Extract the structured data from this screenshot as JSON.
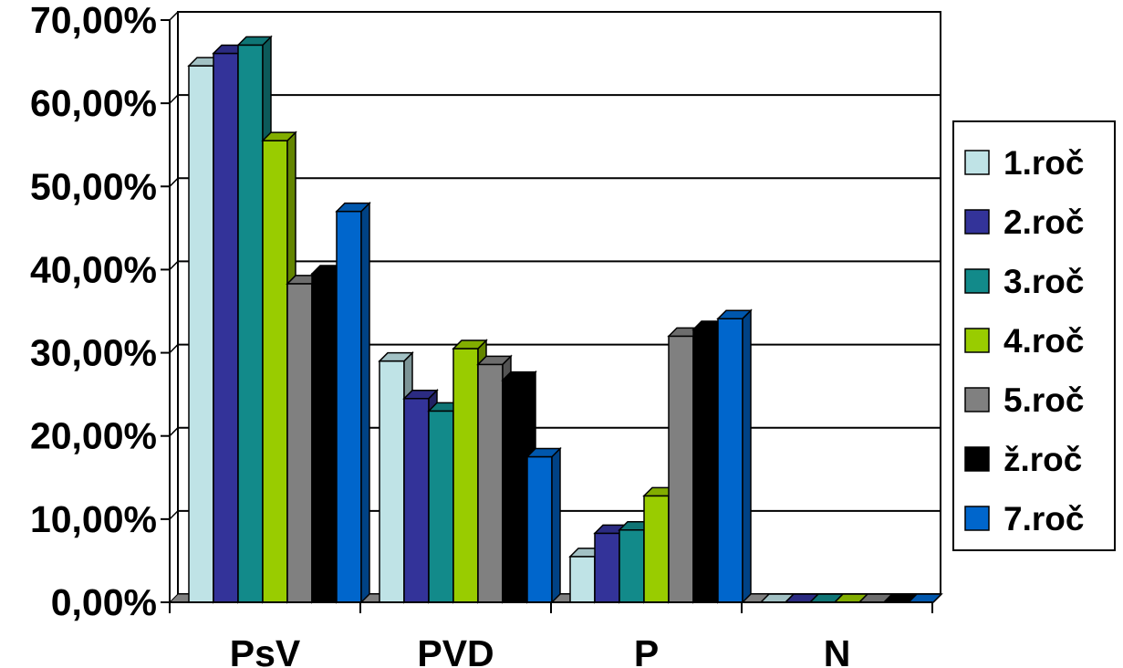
{
  "chart_data": {
    "type": "bar",
    "categories": [
      "PsV",
      "PVD",
      "P",
      "N"
    ],
    "ylim": [
      0,
      70
    ],
    "y_ticks": [
      "0,00%",
      "10,00%",
      "20,00%",
      "30,00%",
      "40,00%",
      "50,00%",
      "60,00%",
      "70,00%"
    ],
    "grid": true,
    "legend_position": "right",
    "series": [
      {
        "name": "1.roč",
        "color": "#bfe3e6",
        "values": [
          64.5,
          29.0,
          5.5,
          0
        ]
      },
      {
        "name": "2.roč",
        "color": "#333399",
        "values": [
          66.0,
          24.5,
          8.3,
          0
        ]
      },
      {
        "name": "3.roč",
        "color": "#128a8a",
        "values": [
          67.0,
          23.0,
          8.7,
          0
        ]
      },
      {
        "name": "4.roč",
        "color": "#99cc00",
        "values": [
          55.5,
          30.5,
          12.8,
          0
        ]
      },
      {
        "name": "5.roč",
        "color": "#808080",
        "values": [
          38.3,
          28.6,
          32.0,
          0
        ]
      },
      {
        "name": "ž.roč",
        "color": "#000000",
        "values": [
          39.5,
          26.7,
          32.8,
          0
        ]
      },
      {
        "name": "7.roč",
        "color": "#0066cc",
        "values": [
          47.0,
          17.5,
          34.1,
          0
        ]
      }
    ]
  }
}
